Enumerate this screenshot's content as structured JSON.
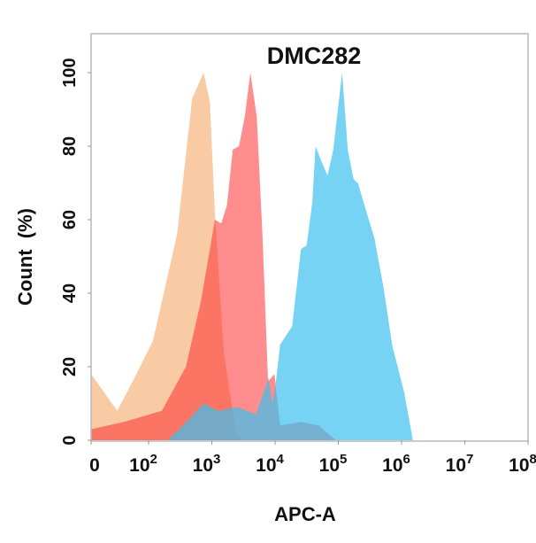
{
  "chart_data": {
    "type": "area",
    "title": "DMC282",
    "xlabel": "APC-A",
    "ylabel": "Count  (%)",
    "x_scale": "log (biexponential, 0 at left edge)",
    "xlim": [
      0,
      100000000
    ],
    "ylim": [
      0,
      110
    ],
    "x_ticks": [
      {
        "base": "0",
        "exp": ""
      },
      {
        "base": "10",
        "exp": "2"
      },
      {
        "base": "10",
        "exp": "3"
      },
      {
        "base": "10",
        "exp": "4"
      },
      {
        "base": "10",
        "exp": "5"
      },
      {
        "base": "10",
        "exp": "6"
      },
      {
        "base": "10",
        "exp": "7"
      },
      {
        "base": "10",
        "exp": "8"
      }
    ],
    "y_ticks": [
      "0",
      "20",
      "40",
      "60",
      "80",
      "100"
    ],
    "grid": false,
    "series": [
      {
        "color": "#f5a868",
        "opacity": 0.6,
        "x": [
          0,
          32,
          56,
          117,
          282,
          490,
          741,
          933,
          1122,
          1549,
          2399,
          3311
        ],
        "y": [
          18,
          8,
          16,
          27,
          56,
          93,
          100,
          92,
          61,
          24,
          2,
          0
        ]
      },
      {
        "color": "#ff3030",
        "opacity": 0.55,
        "x": [
          0,
          41,
          162,
          389,
          676,
          1120,
          1410,
          1740,
          2140,
          2690,
          3310,
          4070,
          5130,
          6310,
          7760,
          9770,
          12000,
          25700,
          49000,
          91000
        ],
        "y": [
          3,
          5,
          8,
          20,
          38,
          60,
          59,
          64,
          79,
          80,
          88,
          100,
          88,
          56,
          16,
          18,
          4,
          5,
          4,
          0
        ]
      },
      {
        "color": "#3cc0f0",
        "opacity": 0.7,
        "x": [
          200,
          398,
          741,
          1260,
          2510,
          5010,
          7940,
          8900,
          10000,
          12000,
          18600,
          25700,
          31600,
          38900,
          43600,
          53700,
          67600,
          83200,
          115000,
          141000,
          174000,
          204000,
          269000,
          372000,
          513000,
          708000,
          1100000,
          1510000
        ],
        "y": [
          0,
          5,
          10,
          8,
          9,
          7,
          17,
          10,
          14,
          26,
          31,
          52,
          53,
          65,
          80,
          76,
          72,
          79,
          100,
          79,
          71,
          70,
          63,
          55,
          42,
          26,
          13,
          0
        ]
      }
    ]
  }
}
